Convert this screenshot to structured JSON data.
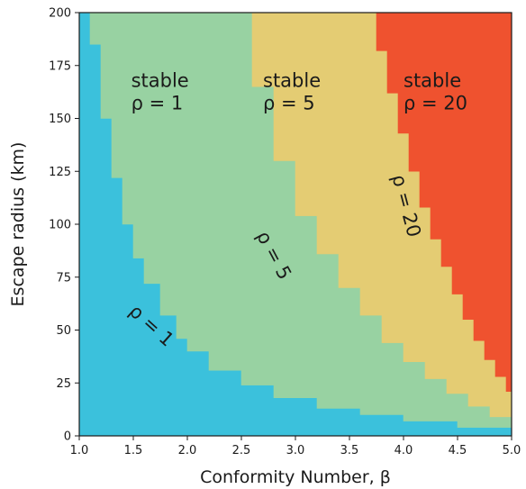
{
  "chart_data": {
    "type": "heatmap",
    "title": "",
    "xlabel": "Conformity Number, β",
    "ylabel": "Escape radius (km)",
    "xlim": [
      1.0,
      5.0
    ],
    "ylim": [
      0,
      200
    ],
    "xticks": [
      "1.0",
      "1.5",
      "2.0",
      "2.5",
      "3.0",
      "3.5",
      "4.0",
      "4.5",
      "5.0"
    ],
    "yticks": [
      "0",
      "25",
      "50",
      "75",
      "100",
      "125",
      "150",
      "175",
      "200"
    ],
    "grid": false,
    "regions": [
      {
        "color": "#3bc1dc"
      },
      {
        "color": "#98d2a2",
        "line1": "stable",
        "line2": "ρ = 1"
      },
      {
        "color": "#e4cc73",
        "line1": "stable",
        "line2": "ρ = 5"
      },
      {
        "color": "#ef522f",
        "line1": "stable",
        "line2": "ρ = 20"
      }
    ],
    "boundaries": [
      {
        "label": "ρ = 1",
        "points": [
          [
            1.08,
            200
          ],
          [
            1.1,
            185
          ],
          [
            1.2,
            150
          ],
          [
            1.3,
            122
          ],
          [
            1.4,
            100
          ],
          [
            1.5,
            84
          ],
          [
            1.6,
            72
          ],
          [
            1.75,
            57
          ],
          [
            1.9,
            46
          ],
          [
            2.0,
            40
          ],
          [
            2.2,
            31
          ],
          [
            2.5,
            24
          ],
          [
            2.8,
            18
          ],
          [
            3.2,
            13
          ],
          [
            3.6,
            10
          ],
          [
            4.0,
            7
          ],
          [
            4.5,
            4
          ],
          [
            5.0,
            2
          ]
        ]
      },
      {
        "label": "ρ = 5",
        "points": [
          [
            2.45,
            200
          ],
          [
            2.6,
            165
          ],
          [
            2.8,
            130
          ],
          [
            3.0,
            104
          ],
          [
            3.2,
            86
          ],
          [
            3.4,
            70
          ],
          [
            3.6,
            57
          ],
          [
            3.8,
            44
          ],
          [
            4.0,
            35
          ],
          [
            4.2,
            27
          ],
          [
            4.4,
            20
          ],
          [
            4.6,
            14
          ],
          [
            4.8,
            9
          ],
          [
            5.0,
            6
          ]
        ]
      },
      {
        "label": "ρ = 20",
        "points": [
          [
            3.67,
            200
          ],
          [
            3.75,
            182
          ],
          [
            3.85,
            162
          ],
          [
            3.95,
            143
          ],
          [
            4.05,
            125
          ],
          [
            4.15,
            108
          ],
          [
            4.25,
            93
          ],
          [
            4.35,
            80
          ],
          [
            4.45,
            67
          ],
          [
            4.55,
            55
          ],
          [
            4.65,
            45
          ],
          [
            4.75,
            36
          ],
          [
            4.85,
            28
          ],
          [
            4.95,
            21
          ],
          [
            5.0,
            18
          ]
        ]
      }
    ]
  }
}
